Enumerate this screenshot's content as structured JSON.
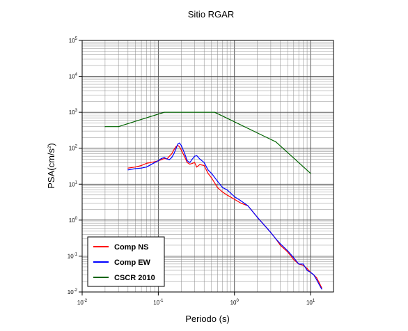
{
  "chart_data": {
    "type": "line",
    "title": "Sitio RGAR",
    "xlabel": "Periodo (s)",
    "ylabel": "PSA(cm/s",
    "ylabel_sup": "2",
    "ylabel_end": ")",
    "x_scale": "log",
    "y_scale": "log",
    "xlim": [
      0.01,
      20
    ],
    "ylim": [
      0.01,
      100000
    ],
    "grid": true,
    "legend_position": "bottom-left",
    "x_ticks": [
      {
        "base": "10",
        "exp": "-2",
        "value": 0.01
      },
      {
        "base": "10",
        "exp": "-1",
        "value": 0.1
      },
      {
        "base": "10",
        "exp": "0",
        "value": 1
      },
      {
        "base": "10",
        "exp": "1",
        "value": 10
      }
    ],
    "y_ticks": [
      {
        "base": "10",
        "exp": "-2",
        "value": 0.01
      },
      {
        "base": "10",
        "exp": "-1",
        "value": 0.1
      },
      {
        "base": "10",
        "exp": "0",
        "value": 1
      },
      {
        "base": "10",
        "exp": "1",
        "value": 10
      },
      {
        "base": "10",
        "exp": "2",
        "value": 100
      },
      {
        "base": "10",
        "exp": "3",
        "value": 1000
      },
      {
        "base": "10",
        "exp": "4",
        "value": 10000
      },
      {
        "base": "10",
        "exp": "5",
        "value": 100000
      }
    ],
    "series": [
      {
        "name": "Comp NS",
        "color": "#ff0000",
        "x": [
          0.04,
          0.05,
          0.06,
          0.07,
          0.08,
          0.09,
          0.1,
          0.11,
          0.12,
          0.13,
          0.14,
          0.15,
          0.16,
          0.17,
          0.18,
          0.19,
          0.2,
          0.22,
          0.24,
          0.26,
          0.28,
          0.3,
          0.32,
          0.35,
          0.4,
          0.45,
          0.5,
          0.6,
          0.7,
          0.8,
          1.0,
          1.2,
          1.5,
          2.0,
          2.5,
          3.0,
          3.5,
          4.0,
          5.0,
          6.0,
          7.0,
          8.0,
          9.0,
          10.0,
          11.0,
          12.0,
          13.0,
          14.0
        ],
        "y": [
          28,
          30,
          33,
          38,
          40,
          42,
          45,
          48,
          52,
          50,
          60,
          70,
          90,
          110,
          120,
          110,
          90,
          60,
          40,
          36,
          38,
          40,
          30,
          35,
          33,
          20,
          15,
          8,
          6,
          5,
          3.8,
          3.0,
          2.5,
          1.2,
          0.7,
          0.45,
          0.3,
          0.2,
          0.13,
          0.08,
          0.06,
          0.055,
          0.045,
          0.035,
          0.03,
          0.025,
          0.018,
          0.013
        ]
      },
      {
        "name": "Comp EW",
        "color": "#0000ff",
        "x": [
          0.04,
          0.05,
          0.06,
          0.07,
          0.08,
          0.09,
          0.1,
          0.11,
          0.12,
          0.13,
          0.14,
          0.15,
          0.16,
          0.17,
          0.18,
          0.19,
          0.2,
          0.22,
          0.24,
          0.26,
          0.28,
          0.3,
          0.32,
          0.35,
          0.4,
          0.45,
          0.5,
          0.6,
          0.7,
          0.8,
          1.0,
          1.2,
          1.5,
          2.0,
          2.5,
          3.0,
          3.5,
          4.0,
          5.0,
          6.0,
          7.0,
          8.0,
          9.0,
          10.0,
          11.0,
          12.0,
          13.0,
          14.0
        ],
        "y": [
          25,
          27,
          28,
          30,
          35,
          40,
          45,
          52,
          55,
          50,
          48,
          55,
          70,
          95,
          130,
          140,
          120,
          75,
          45,
          40,
          50,
          60,
          62,
          50,
          40,
          25,
          20,
          12,
          8,
          7,
          4.5,
          3.5,
          2.5,
          1.2,
          0.7,
          0.45,
          0.3,
          0.22,
          0.14,
          0.09,
          0.06,
          0.06,
          0.04,
          0.035,
          0.03,
          0.022,
          0.016,
          0.012
        ]
      },
      {
        "name": "CSCR 2010",
        "color": "#006400",
        "x": [
          0.02,
          0.03,
          0.12,
          0.55,
          3.5,
          10.0
        ],
        "y": [
          400,
          400,
          1000,
          1000,
          150,
          20
        ]
      }
    ]
  }
}
